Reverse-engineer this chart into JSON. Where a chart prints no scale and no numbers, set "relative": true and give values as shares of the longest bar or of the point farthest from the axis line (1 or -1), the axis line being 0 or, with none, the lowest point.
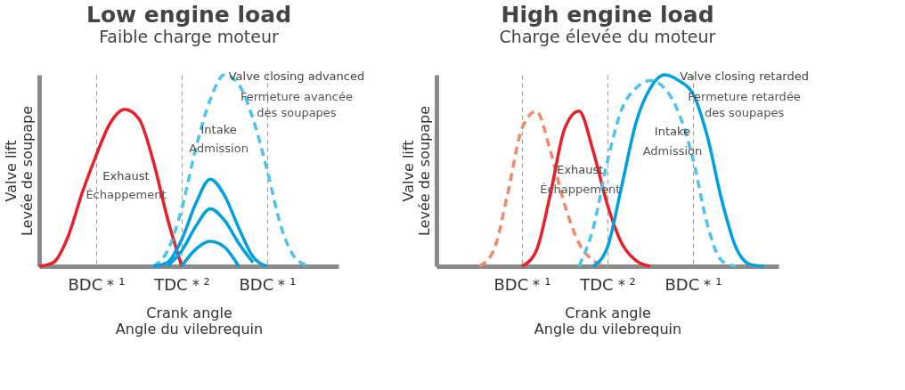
{
  "chart_data": [
    {
      "type": "line",
      "title": "Low engine load",
      "subtitle": "Faible charge moteur",
      "xlabel": "Crank angle\nAngle du vilebrequin",
      "ylabel": "Valve lift\nLevée de soupape",
      "relative": true,
      "grid": "x",
      "line_style": "solid",
      "categories": [
        null,
        null,
        null,
        null,
        "BDC＊¹",
        null,
        null,
        null,
        null,
        null,
        "TDC＊²",
        null,
        null,
        null,
        null,
        null,
        "BDC＊¹",
        null,
        null,
        null,
        null,
        null
      ],
      "series": [
        {
          "color": "#e8202a",
          "values": [
            0,
            0.02,
            0.15,
            0.38,
            0.58,
            0.75,
            0.82,
            0.77,
            0.55,
            0.25,
            0,
            null,
            null,
            null,
            null,
            null,
            null,
            null,
            null,
            null,
            null,
            null
          ]
        },
        {
          "color": "#4fc3ee",
          "line_style": "dashed",
          "values": [
            null,
            null,
            null,
            null,
            null,
            null,
            null,
            null,
            0,
            0.08,
            0.3,
            0.62,
            0.87,
            1,
            0.95,
            0.77,
            0.5,
            0.2,
            0.04,
            0,
            null,
            null
          ]
        },
        {
          "color": "#00a0e0",
          "values": [
            null,
            null,
            null,
            null,
            null,
            null,
            null,
            null,
            0,
            0.02,
            0.14,
            0.33,
            0.455,
            0.37,
            0.2,
            0.05,
            0,
            null,
            null,
            null,
            null,
            null
          ]
        },
        {
          "color": "#00a0e0",
          "values": [
            null,
            null,
            null,
            null,
            null,
            null,
            null,
            null,
            null,
            0,
            0.08,
            0.21,
            0.3,
            0.24,
            0.12,
            0.02,
            null,
            null,
            null,
            null,
            null,
            null
          ]
        },
        {
          "color": "#00a0e0",
          "values": [
            null,
            null,
            null,
            null,
            null,
            null,
            null,
            null,
            null,
            null,
            0,
            0.09,
            0.13,
            0.1,
            0,
            null,
            null,
            null,
            null,
            null,
            null,
            null
          ]
        }
      ],
      "annotations": [
        "Exhaust",
        "Échappement",
        "Intake",
        "Admission",
        "Valve closing advanced",
        "Fermeture avancée\ndes soupapes"
      ]
    },
    {
      "type": "line",
      "title": "High engine load",
      "subtitle": "Charge élevée du moteur",
      "xlabel": "Crank angle\nAngle du vilebrequin",
      "ylabel": "Valve lift\nLevée de soupape",
      "relative": true,
      "grid": "x",
      "line_style": "solid",
      "categories": [
        null,
        null,
        null,
        null,
        null,
        null,
        "BDC＊¹",
        null,
        null,
        null,
        null,
        null,
        "TDC＊²",
        null,
        null,
        null,
        null,
        null,
        "BDC＊¹",
        null,
        null,
        null,
        null,
        null,
        null
      ],
      "series": [
        {
          "color": "#f08a6a",
          "line_style": "dashed",
          "values": [
            null,
            null,
            null,
            0,
            0.08,
            0.38,
            0.72,
            0.81,
            0.6,
            0.32,
            0.12,
            0.03,
            0,
            null,
            null,
            null,
            null,
            null,
            null,
            null,
            null,
            null,
            null,
            null,
            null
          ]
        },
        {
          "color": "#e8202a",
          "values": [
            null,
            null,
            null,
            null,
            null,
            null,
            0,
            0.08,
            0.38,
            0.72,
            0.81,
            0.6,
            0.32,
            0.12,
            0.03,
            0,
            null,
            null,
            null,
            null,
            null,
            null,
            null,
            null,
            null
          ]
        },
        {
          "color": "#4fc3ee",
          "line_style": "dashed",
          "values": [
            null,
            null,
            null,
            null,
            null,
            null,
            null,
            null,
            null,
            null,
            0,
            0.2,
            0.55,
            0.82,
            0.93,
            0.97,
            0.93,
            0.8,
            0.56,
            0.22,
            0.03,
            0,
            null,
            null,
            null
          ]
        },
        {
          "color": "#00a0e0",
          "values": [
            null,
            null,
            null,
            null,
            null,
            null,
            null,
            null,
            null,
            null,
            null,
            0,
            0.1,
            0.42,
            0.75,
            0.93,
            1,
            0.97,
            0.9,
            0.68,
            0.35,
            0.1,
            0.01,
            0,
            null
          ]
        }
      ],
      "annotations": [
        "Exhaust",
        "Échappement",
        "Intake",
        "Admission",
        "Valve closing retarded",
        "Fermeture retardée\ndes soupapes"
      ]
    }
  ]
}
